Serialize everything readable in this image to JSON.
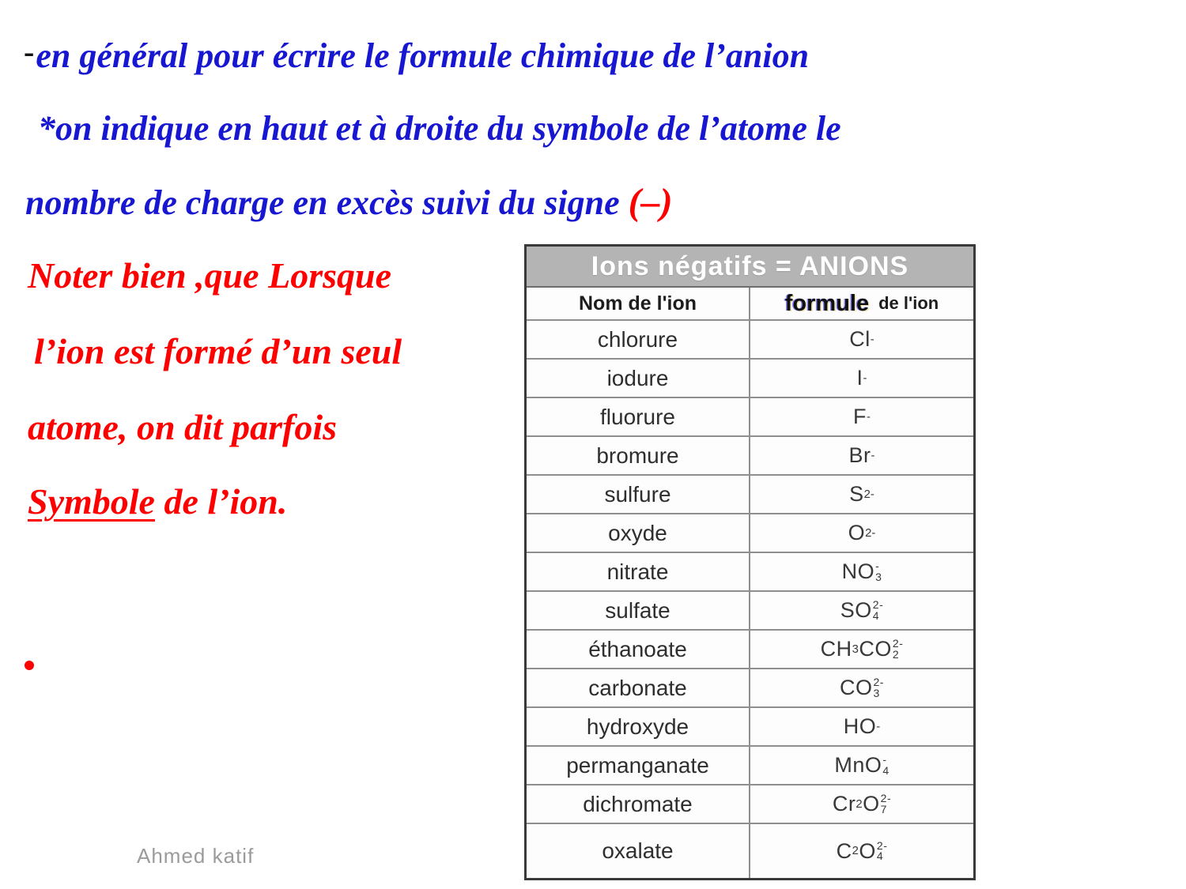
{
  "colors": {
    "blue": "#1717d2",
    "red": "#fe0000",
    "banner_bg": "#b4b4b4",
    "banner_text": "#ffffff",
    "author": "#9b9b9b"
  },
  "intro": {
    "bullet_dash": "-",
    "line1": "en général pour écrire le formule chimique de  l’anion",
    "line2": "*on indique en haut et à droite du symbole de l’atome le",
    "line3_main": "nombre de charge en excès suivi du signe ",
    "line3_sign": "(–)"
  },
  "note": {
    "line1": "Noter bien ,que Lorsque",
    "line2": "l’ion est formé d’un seul",
    "line3": "atome, on dit parfois",
    "line4_underlined": "Symbole",
    "line4_rest": " de l’ion.",
    "bullet": "."
  },
  "footer": {
    "author": "Ahmed katif"
  },
  "table": {
    "title": "Ions négatifs = ANIONS",
    "header": {
      "name_col": "Nom de l'ion",
      "formula_col_bold": "formule",
      "formula_col_rest": "de l'ion"
    },
    "rows": [
      {
        "name": "chlorure",
        "formula": "Cl^-"
      },
      {
        "name": "iodure",
        "formula": "I^-"
      },
      {
        "name": "fluorure",
        "formula": "F^-"
      },
      {
        "name": "bromure",
        "formula": "Br^-"
      },
      {
        "name": "sulfure",
        "formula": "S^2-"
      },
      {
        "name": "oxyde",
        "formula": "O^2-"
      },
      {
        "name": "nitrate",
        "formula": "NO_3^-"
      },
      {
        "name": "sulfate",
        "formula": "SO_4^2-"
      },
      {
        "name": "éthanoate",
        "formula": "CH_3CO_2^2-"
      },
      {
        "name": "carbonate",
        "formula": "CO_3^2-"
      },
      {
        "name": "hydroxyde",
        "formula": "HO^-"
      },
      {
        "name": "permanganate",
        "formula": "MnO_4^-"
      },
      {
        "name": "dichromate",
        "formula": "Cr_2O_7^2-"
      },
      {
        "name": "oxalate",
        "formula": "C_2O_4^2-"
      }
    ]
  }
}
